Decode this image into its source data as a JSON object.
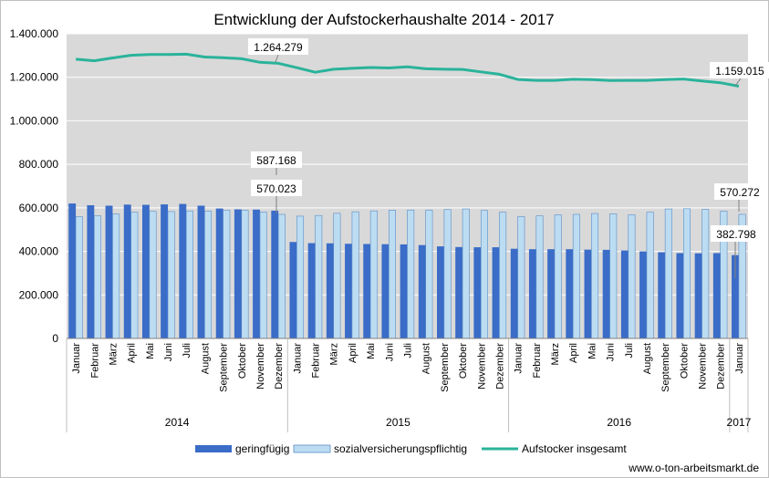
{
  "chart_data": {
    "type": "bar",
    "title": "Entwicklung der Aufstockerhaushalte 2014 - 2017",
    "source": "www.o-ton-arbeitsmarkt.de",
    "ylim": [
      0,
      1400000
    ],
    "yticks": [
      "0",
      "200.000",
      "400.000",
      "600.000",
      "800.000",
      "1.000.000",
      "1.200.000",
      "1.400.000"
    ],
    "ytick_values": [
      0,
      200000,
      400000,
      600000,
      800000,
      1000000,
      1200000,
      1400000
    ],
    "grid": true,
    "legend_position": "bottom",
    "colors": {
      "plot_bg": "#d9d9d9",
      "geringfuegig": "#3a6cc8",
      "svp": "#bcdcf2",
      "svp_border": "#5b8cc4",
      "line": "#2ab39b"
    },
    "categories": [
      "Januar",
      "Februar",
      "März",
      "April",
      "Mai",
      "Juni",
      "Juli",
      "August",
      "September",
      "Oktober",
      "November",
      "Dezember",
      "Januar",
      "Februar",
      "März",
      "April",
      "Mai",
      "Juni",
      "Juli",
      "August",
      "September",
      "Oktober",
      "November",
      "Dezember",
      "Januar",
      "Februar",
      "März",
      "April",
      "Mai",
      "Juni",
      "Juli",
      "August",
      "September",
      "Oktober",
      "November",
      "Dezember",
      "Januar"
    ],
    "years": [
      {
        "label": "2014",
        "start": 0,
        "end": 11
      },
      {
        "label": "2015",
        "start": 12,
        "end": 23
      },
      {
        "label": "2016",
        "start": 24,
        "end": 35
      },
      {
        "label": "2017",
        "start": 36,
        "end": 36
      }
    ],
    "series": [
      {
        "name": "geringfügig",
        "type": "bar",
        "values": [
          620000,
          612000,
          610000,
          615000,
          614000,
          616000,
          618000,
          610000,
          597000,
          593000,
          592000,
          587168,
          443000,
          438000,
          437000,
          435000,
          434000,
          433000,
          432000,
          429000,
          423000,
          420000,
          419000,
          419000,
          412000,
          410000,
          410000,
          410000,
          408000,
          407000,
          404000,
          400000,
          396000,
          392000,
          391000,
          392000,
          382798
        ]
      },
      {
        "name": "sozialversicherungspflichtig",
        "type": "bar",
        "values": [
          560000,
          563000,
          572000,
          580000,
          584000,
          583000,
          586000,
          585000,
          589000,
          589000,
          581000,
          570023,
          562000,
          565000,
          575000,
          582000,
          586000,
          589000,
          590000,
          590000,
          592000,
          595000,
          588000,
          580000,
          560000,
          563000,
          568000,
          570000,
          574000,
          573000,
          568000,
          580000,
          595000,
          596000,
          593000,
          585000,
          570272
        ]
      },
      {
        "name": "Aufstocker insgesamt",
        "type": "line",
        "values": [
          1283000,
          1276000,
          1289000,
          1301000,
          1305000,
          1305000,
          1306000,
          1293000,
          1290000,
          1285000,
          1269000,
          1264279,
          1244000,
          1223000,
          1237000,
          1241000,
          1245000,
          1243000,
          1248000,
          1239000,
          1237000,
          1236000,
          1225000,
          1214000,
          1190000,
          1186000,
          1186000,
          1191000,
          1189000,
          1185000,
          1186000,
          1186000,
          1189000,
          1192000,
          1183000,
          1175000,
          1159015
        ]
      }
    ],
    "annotations": [
      {
        "text": "1.264.279",
        "series": "Aufstocker insgesamt",
        "index": 11
      },
      {
        "text": "1.159.015",
        "series": "Aufstocker insgesamt",
        "index": 36
      },
      {
        "text": "587.168",
        "series": "geringfügig",
        "index": 11
      },
      {
        "text": "570.023",
        "series": "sozialversicherungspflichtig",
        "index": 11
      },
      {
        "text": "570.272",
        "series": "sozialversicherungspflichtig",
        "index": 36
      },
      {
        "text": "382.798",
        "series": "geringfügig",
        "index": 36
      }
    ]
  }
}
